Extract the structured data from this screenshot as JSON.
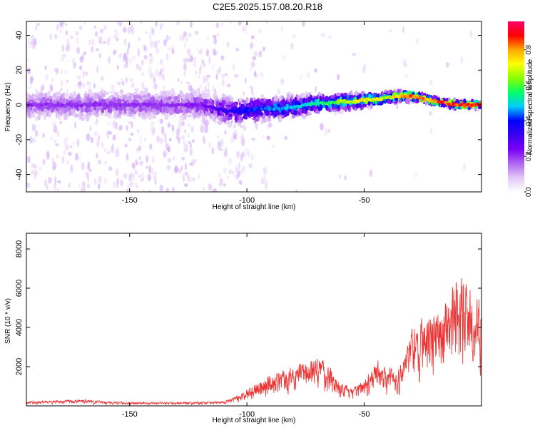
{
  "title": "C2E5.2025.157.08.20.R18",
  "colors": {
    "snr_line": "#ee3333",
    "colormap": [
      "#ffffff",
      "#e2c8f6",
      "#b066f0",
      "#7a00f5",
      "#3a00f0",
      "#0000ff",
      "#00ccff",
      "#00ff66",
      "#88ff00",
      "#ffff00",
      "#ffaa00",
      "#ff0000",
      "#ff0066"
    ]
  },
  "colorbar": {
    "label": "Normalized spectral amplitude",
    "ticks": [
      "0.0",
      "0.2",
      "0.4",
      "0.6",
      "0.8"
    ],
    "tick_values": [
      0.0,
      0.2,
      0.4,
      0.6,
      0.8
    ],
    "range": [
      0,
      0.96
    ]
  },
  "chart_data": [
    {
      "type": "heatmap",
      "title": "",
      "xlabel": "Height of straight line (km)",
      "ylabel": "Frequency (Hz)",
      "xlim": [
        -194,
        0
      ],
      "ylim": [
        -50,
        48
      ],
      "xticks": [
        -150,
        -100,
        -50
      ],
      "xtick_labels": [
        "-150",
        "-100",
        "-50"
      ],
      "yticks": [
        -40,
        -20,
        0,
        20,
        40
      ],
      "ytick_labels": [
        "-40",
        "-20",
        "0",
        "20",
        "40"
      ],
      "ridge": {
        "description_values": "frequency of peak amplitude versus height",
        "x": [
          -194,
          -180,
          -160,
          -140,
          -120,
          -110,
          -100,
          -95,
          -90,
          -85,
          -80,
          -75,
          -70,
          -65,
          -60,
          -55,
          -50,
          -45,
          -40,
          -35,
          -30,
          -25,
          -20,
          -15,
          -10,
          -5,
          0
        ],
        "y": [
          0,
          0,
          0,
          0,
          0,
          -3,
          -4,
          -2,
          -2,
          -2,
          -1,
          0,
          1,
          1,
          2,
          2,
          3,
          3,
          4,
          5,
          5,
          4,
          2,
          1,
          0,
          0,
          0
        ],
        "amplitude": [
          0.22,
          0.22,
          0.22,
          0.22,
          0.24,
          0.35,
          0.42,
          0.46,
          0.48,
          0.5,
          0.52,
          0.55,
          0.58,
          0.62,
          0.68,
          0.74,
          0.78,
          0.76,
          0.72,
          0.86,
          0.9,
          0.88,
          0.9,
          0.93,
          0.95,
          0.95,
          0.94
        ]
      }
    },
    {
      "type": "line",
      "title": "",
      "xlabel": "Height of straight line (km)",
      "ylabel": "SNR (10 * v/v)",
      "xlim": [
        -194,
        0
      ],
      "ylim": [
        0,
        8800
      ],
      "xticks": [
        -150,
        -100,
        -50
      ],
      "xtick_labels": [
        "-150",
        "-100",
        "-50"
      ],
      "yticks": [
        2000,
        4000,
        6000,
        8000
      ],
      "ytick_labels": [
        "2000",
        "4000",
        "6000",
        "8000"
      ],
      "envelope": {
        "x": [
          -194,
          -180,
          -170,
          -160,
          -150,
          -140,
          -130,
          -120,
          -110,
          -105,
          -100,
          -95,
          -90,
          -85,
          -80,
          -75,
          -70,
          -65,
          -60,
          -55,
          -50,
          -45,
          -40,
          -35,
          -30,
          -25,
          -20,
          -15,
          -10,
          -5,
          0
        ],
        "y": [
          250,
          300,
          350,
          250,
          200,
          200,
          220,
          220,
          250,
          500,
          900,
          1400,
          1700,
          1900,
          2200,
          2500,
          2700,
          2200,
          1300,
          900,
          1500,
          2500,
          2200,
          2000,
          4200,
          4700,
          5000,
          6000,
          7000,
          6500,
          5600
        ]
      }
    }
  ]
}
